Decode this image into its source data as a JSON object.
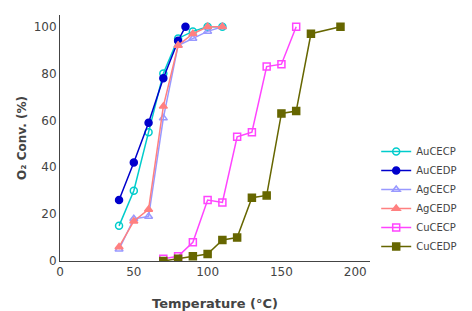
{
  "chart_data": {
    "type": "line",
    "xlabel": "Temperature (°C)",
    "ylabel": "O₂ Conv. (%)",
    "xlim": [
      0,
      210
    ],
    "ylim": [
      0,
      105
    ],
    "xticks": [
      0,
      50,
      100,
      150,
      200
    ],
    "yticks": [
      0,
      20,
      40,
      60,
      80,
      100
    ],
    "grid": false,
    "legend": "lower right",
    "series": [
      {
        "name": "AuCECP",
        "color": "#00CCCC",
        "marker": "circle-open",
        "x": [
          40,
          50,
          60,
          70,
          80,
          90,
          100,
          110
        ],
        "values": [
          15,
          30,
          55,
          80,
          95,
          98,
          100,
          100
        ]
      },
      {
        "name": "AuCEDP",
        "color": "#0000CC",
        "marker": "circle",
        "x": [
          40,
          50,
          60,
          70,
          80,
          85
        ],
        "values": [
          26,
          42,
          59,
          78,
          94,
          100
        ]
      },
      {
        "name": "AgCECP",
        "color": "#9999FF",
        "marker": "triangle-up-open",
        "x": [
          40,
          50,
          60,
          70,
          80,
          90,
          100,
          110
        ],
        "values": [
          5,
          18,
          19,
          61,
          92,
          95,
          98,
          100
        ]
      },
      {
        "name": "AgCEDP",
        "color": "#FF8080",
        "marker": "triangle-up",
        "x": [
          40,
          50,
          60,
          70,
          80,
          90,
          100,
          110
        ],
        "values": [
          6,
          17,
          22,
          66,
          92,
          97,
          100,
          100
        ]
      },
      {
        "name": "CuCECP",
        "color": "#FF44FF",
        "marker": "square-open",
        "x": [
          70,
          80,
          90,
          100,
          110,
          120,
          130,
          140,
          150,
          160
        ],
        "values": [
          1,
          2,
          8,
          26,
          25,
          53,
          55,
          83,
          84,
          100
        ]
      },
      {
        "name": "CuCEDP",
        "color": "#666600",
        "marker": "square",
        "x": [
          70,
          80,
          90,
          100,
          110,
          120,
          130,
          140,
          150,
          160,
          170,
          190
        ],
        "values": [
          0,
          1,
          2,
          3,
          9,
          10,
          27,
          28,
          63,
          64,
          97,
          100
        ]
      }
    ]
  }
}
